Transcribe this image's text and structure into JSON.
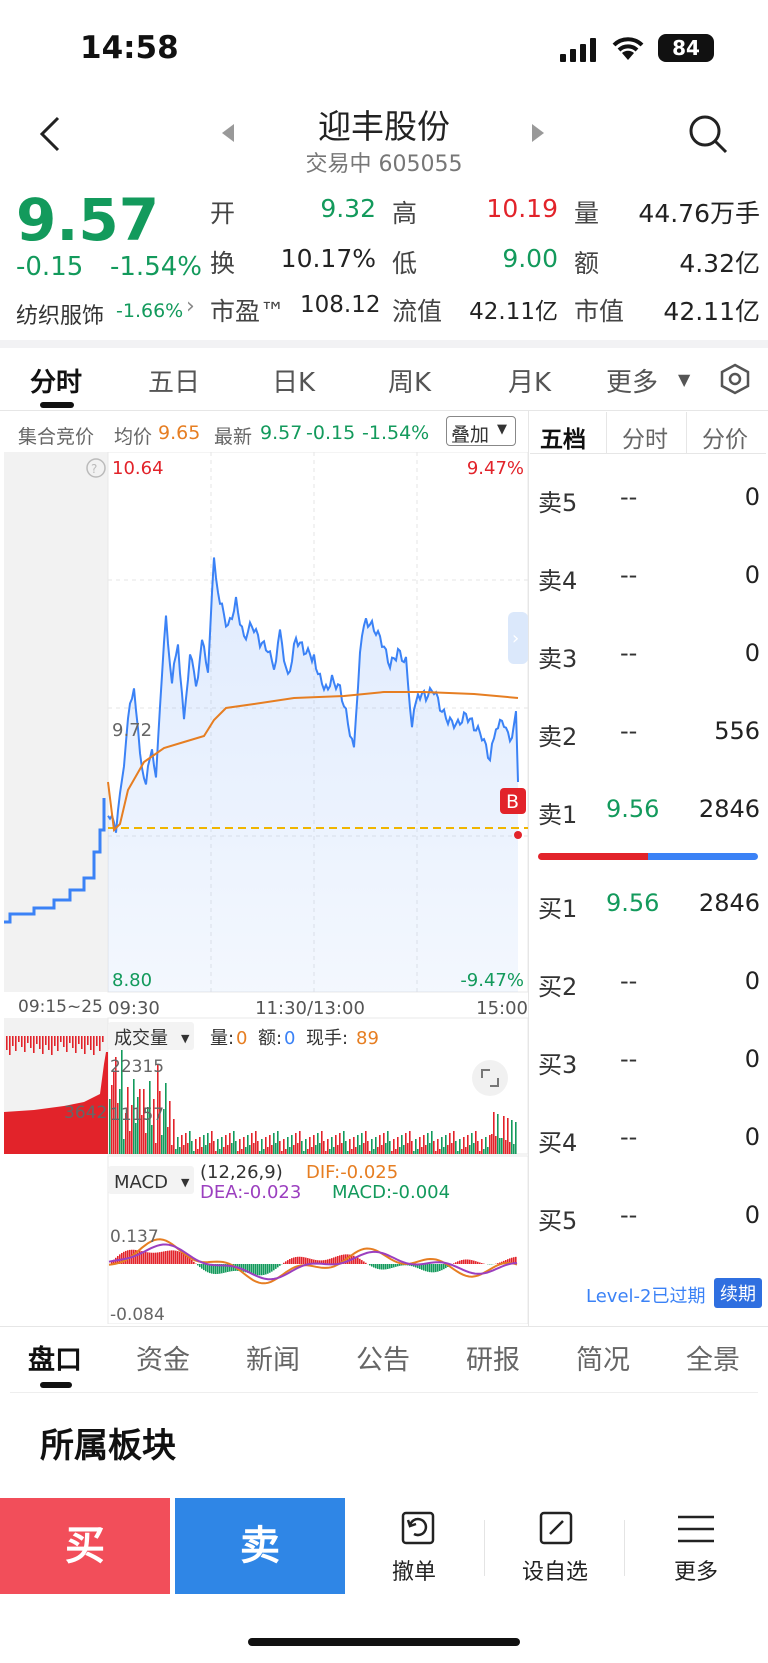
{
  "status_bar": {
    "time": "14:58",
    "battery": "84"
  },
  "header": {
    "title": "迎丰股份",
    "subtitle": "交易中 605055"
  },
  "quote": {
    "price": "9.57",
    "change": "-0.15",
    "change_pct": "-1.54%",
    "sector": "纺织服饰",
    "sector_pct": "-1.66%",
    "open_label": "开",
    "open": "9.32",
    "high_label": "高",
    "high": "10.19",
    "volume_label": "量",
    "volume": "44.76万手",
    "turnover_label": "换",
    "turnover": "10.17%",
    "low_label": "低",
    "low": "9.00",
    "amount_label": "额",
    "amount": "4.32亿",
    "pe_label": "市盈™",
    "pe": "108.12",
    "float_label": "流值",
    "float_value": "42.11亿",
    "mcap_label": "市值",
    "mcap": "42.11亿"
  },
  "chart_tabs": [
    "分时",
    "五日",
    "日K",
    "周K",
    "月K",
    "更多"
  ],
  "info_bar": {
    "auction": "集合竞价",
    "avg_label": "均价",
    "avg": "9.65",
    "latest_label": "最新",
    "latest": "9.57",
    "chg": "-0.15",
    "chg_pct": "-1.54%",
    "overlay": "叠加"
  },
  "price_axis": {
    "top": "10.64",
    "mid": "9.72",
    "bottom": "8.80",
    "top_pct": "9.47%",
    "bottom_pct": "-9.47%"
  },
  "time_axis": [
    "09:15~25",
    "09:30",
    "11:30/13:00",
    "15:00"
  ],
  "volume_panel": {
    "label": "成交量",
    "vol_label": "量:",
    "vol": "0",
    "amt_label": "额:",
    "amt": "0",
    "now_label": "现手:",
    "now": "89",
    "max": "22315",
    "mid": "11157",
    "auction_label": "3642"
  },
  "macd_panel": {
    "label": "MACD",
    "params": "(12,26,9)",
    "dif": "DIF:-0.025",
    "dea": "DEA:-0.023",
    "macd": "MACD:-0.004",
    "max": "0.137",
    "min": "-0.084"
  },
  "orderbook": {
    "tabs": [
      "五档",
      "分时",
      "分价"
    ],
    "asks": [
      {
        "label": "卖5",
        "price": "--",
        "vol": "0"
      },
      {
        "label": "卖4",
        "price": "--",
        "vol": "0"
      },
      {
        "label": "卖3",
        "price": "--",
        "vol": "0"
      },
      {
        "label": "卖2",
        "price": "--",
        "vol": "556"
      },
      {
        "label": "卖1",
        "price": "9.56",
        "vol": "2846"
      }
    ],
    "bids": [
      {
        "label": "买1",
        "price": "9.56",
        "vol": "2846"
      },
      {
        "label": "买2",
        "price": "--",
        "vol": "0"
      },
      {
        "label": "买3",
        "price": "--",
        "vol": "0"
      },
      {
        "label": "买4",
        "price": "--",
        "vol": "0"
      },
      {
        "label": "买5",
        "price": "--",
        "vol": "0"
      }
    ],
    "level2": "Level-2已过期",
    "renew": "续期"
  },
  "bottom_tabs": [
    "盘口",
    "资金",
    "新闻",
    "公告",
    "研报",
    "简况",
    "全景"
  ],
  "section_title": "所属板块",
  "actions": {
    "buy": "买",
    "sell": "卖",
    "cancel": "撤单",
    "watch": "设自选",
    "more": "更多"
  },
  "colors": {
    "red": "#e2232a",
    "green": "#139a5c",
    "blue": "#3b82f6",
    "orange": "#e67e22",
    "buy": "#f24e5a",
    "sell": "#2f86e6"
  }
}
